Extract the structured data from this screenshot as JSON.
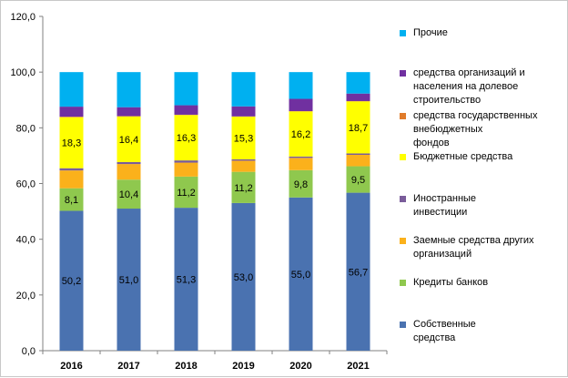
{
  "chart_data": {
    "type": "bar",
    "stacked": true,
    "categories": [
      "2016",
      "2017",
      "2018",
      "2019",
      "2020",
      "2021"
    ],
    "ylim": [
      0,
      120
    ],
    "yticks": [
      "0,0",
      "20,0",
      "40,0",
      "60,0",
      "80,0",
      "100,0",
      "120,0"
    ],
    "grid": false,
    "legend_position": "right",
    "series": [
      {
        "key": "own",
        "name": "Собственные\n  средства",
        "color": "#4a72b0",
        "values": [
          50.2,
          51.0,
          51.3,
          53.0,
          55.0,
          56.7
        ],
        "labels": [
          "50,2",
          "51,0",
          "51,3",
          "53,0",
          "55,0",
          "56,7"
        ]
      },
      {
        "key": "bank",
        "name": "Кредиты банков",
        "color": "#8fc84e",
        "values": [
          8.1,
          10.4,
          11.2,
          11.2,
          9.8,
          9.5
        ],
        "labels": [
          "8,1",
          "10,4",
          "11,2",
          "11,2",
          "9,8",
          "9,5"
        ]
      },
      {
        "key": "loans",
        "name": "Заемные средства других\nорганизаций",
        "color": "#fbb11b",
        "values": [
          6.4,
          5.6,
          5.0,
          4.0,
          4.4,
          4.1
        ]
      },
      {
        "key": "foreign",
        "name": "Иностранные\n  инвестиции",
        "color": "#7a5c9a",
        "values": [
          0.8,
          0.7,
          0.8,
          0.5,
          0.5,
          0.5
        ]
      },
      {
        "key": "budget",
        "name": "Бюджетные средства",
        "color": "#ffff00",
        "values": [
          18.3,
          16.4,
          16.3,
          15.3,
          16.2,
          18.7
        ],
        "labels": [
          "18,3",
          "16,4",
          "16,3",
          "15,3",
          "16,2",
          "18,7"
        ]
      },
      {
        "key": "state_funds",
        "name": "   средства государственных\nвнебюджетных\nфондов",
        "color": "#e07b2a",
        "values": [
          0.2,
          0.1,
          0.1,
          0.1,
          0.1,
          0.1
        ]
      },
      {
        "key": "shared",
        "name": "   средства организаций и\nнаселения на долевое\nстроительство",
        "color": "#7030a0",
        "values": [
          3.6,
          3.2,
          3.4,
          3.6,
          4.4,
          2.7
        ]
      },
      {
        "key": "other",
        "name": "Прочие",
        "color": "#00b0f0",
        "values": [
          12.4,
          12.6,
          11.9,
          12.3,
          9.6,
          7.7
        ]
      }
    ]
  }
}
